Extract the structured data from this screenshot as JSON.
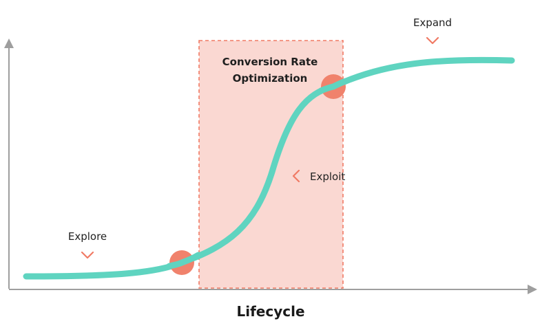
{
  "diagram": {
    "x_axis_label": "Lifecycle",
    "region_label_line1": "Conversion Rate",
    "region_label_line2": "Optimization",
    "phases": {
      "explore": "Explore",
      "exploit": "Exploit",
      "expand": "Expand"
    },
    "colors": {
      "curve": "#5fd4c0",
      "region_fill": "#fad8d2",
      "region_border": "#f07a64",
      "marker": "#f0826c",
      "arrow": "#f07a64",
      "axis": "#9e9e9e"
    }
  }
}
